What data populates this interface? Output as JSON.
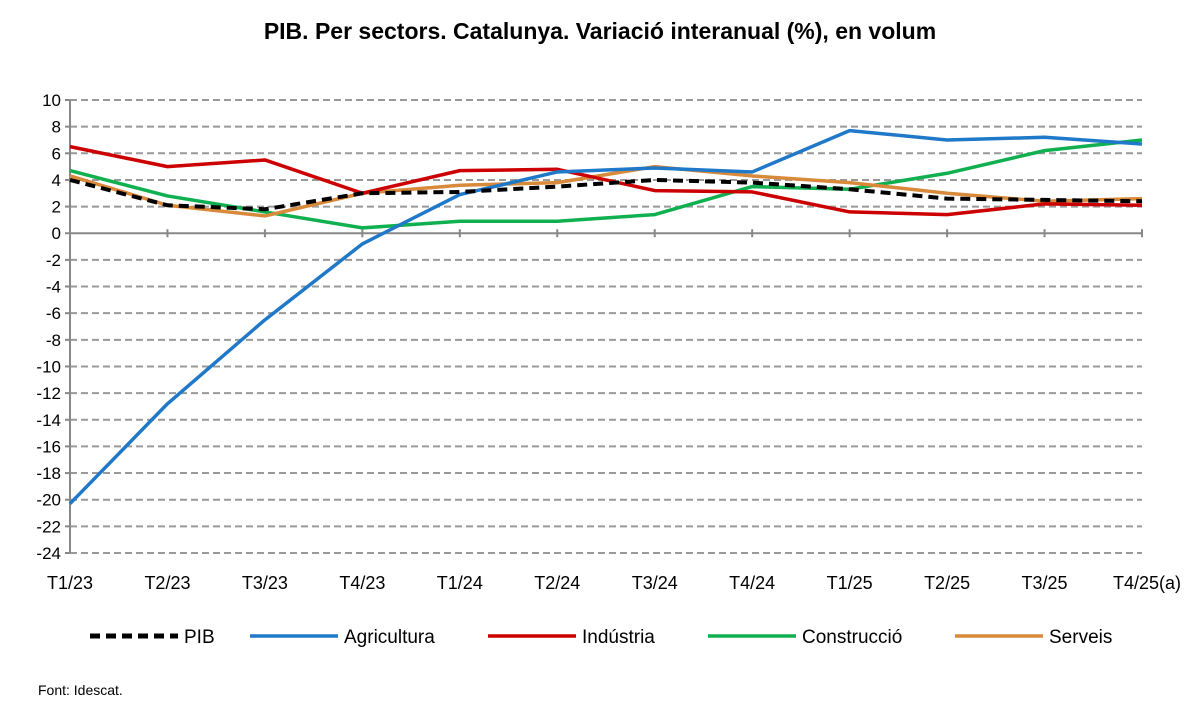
{
  "chart_data": {
    "type": "line",
    "title": "PIB. Per sectors. Catalunya. Variació interanual (%), en volum",
    "xlabel": "",
    "ylabel": "",
    "ylim": [
      -24,
      10
    ],
    "yticks": [
      10,
      8,
      6,
      4,
      2,
      0,
      -2,
      -4,
      -6,
      -8,
      -10,
      -12,
      -14,
      -16,
      -18,
      -20,
      -22,
      -24
    ],
    "grid": true,
    "legend_position": "bottom",
    "categories": [
      "T1/23",
      "T2/23",
      "T3/23",
      "T4/23",
      "T1/24",
      "T2/24",
      "T3/24",
      "T4/24",
      "T1/25",
      "T2/25",
      "T3/25",
      "T4/25(a)"
    ],
    "series": [
      {
        "name": "PIB",
        "color": "#000000",
        "dashed": true,
        "values": [
          4.0,
          2.1,
          1.8,
          3.0,
          3.1,
          3.5,
          4.0,
          3.8,
          3.3,
          2.6,
          2.5,
          2.4
        ]
      },
      {
        "name": "Agricultura",
        "color": "#1f78c8",
        "dashed": false,
        "values": [
          -20.3,
          -12.8,
          -6.5,
          -0.8,
          2.9,
          4.6,
          4.9,
          4.6,
          7.7,
          7.0,
          7.2,
          6.7
        ]
      },
      {
        "name": "Indústria",
        "color": "#cc0000",
        "dashed": false,
        "values": [
          6.5,
          5.0,
          5.5,
          3.0,
          4.7,
          4.8,
          3.2,
          3.1,
          1.6,
          1.4,
          2.2,
          2.1
        ]
      },
      {
        "name": "Construcció",
        "color": "#10b050",
        "dashed": false,
        "values": [
          4.7,
          2.8,
          1.6,
          0.4,
          0.9,
          0.9,
          1.4,
          3.5,
          3.3,
          4.5,
          6.2,
          7.0
        ]
      },
      {
        "name": "Serveis",
        "color": "#d8893a",
        "dashed": false,
        "values": [
          4.3,
          2.1,
          1.3,
          3.0,
          3.6,
          3.8,
          5.0,
          4.3,
          3.8,
          3.0,
          2.4,
          2.6
        ]
      }
    ]
  },
  "source": "Font: Idescat."
}
